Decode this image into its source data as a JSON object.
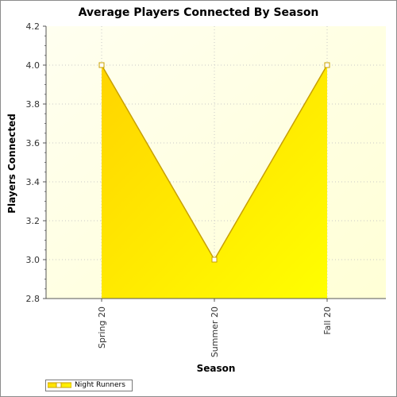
{
  "chart_data": {
    "type": "area",
    "title": "Average Players Connected By Season",
    "xlabel": "Season",
    "ylabel": "Players Connected",
    "categories": [
      "Spring 20",
      "Summer 20",
      "Fall 20"
    ],
    "series": [
      {
        "name": "Night Runners",
        "values": [
          4.0,
          3.0,
          4.0
        ]
      }
    ],
    "ylim": [
      2.8,
      4.2
    ],
    "yticks": [
      "2.8",
      "3.0",
      "3.2",
      "3.4",
      "3.6",
      "3.8",
      "4.0",
      "4.2"
    ],
    "grid": true,
    "legend": "bottom-left",
    "colors": {
      "area_start": "#ffd700",
      "area_end": "#ffff00",
      "line": "#c8a000",
      "plot_bg_start": "#ffffd9",
      "plot_bg_end": "#ffffff"
    }
  }
}
